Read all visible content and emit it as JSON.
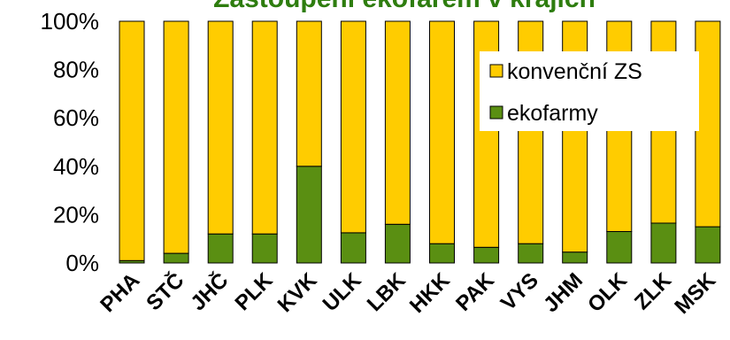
{
  "chart_data": {
    "type": "bar",
    "stacked": true,
    "title": "Zastoupení ekofarem v krajích",
    "categories": [
      "PHA",
      "STČ",
      "JHČ",
      "PLK",
      "KVK",
      "ULK",
      "LBK",
      "HKK",
      "PAK",
      "VYS",
      "JHM",
      "OLK",
      "ZLK",
      "MSK"
    ],
    "series": [
      {
        "name": "ekofarmy",
        "color": "#5a8f12",
        "values": [
          1,
          4,
          12,
          12,
          40,
          12.5,
          16,
          8,
          6.5,
          8,
          4.5,
          13,
          16.5,
          15
        ]
      },
      {
        "name": "konvenční ZS",
        "color": "#ffcc00",
        "values": [
          99,
          96,
          88,
          88,
          60,
          87.5,
          84,
          92,
          93.5,
          92,
          95.5,
          87,
          83.5,
          85
        ]
      }
    ],
    "yticks": [
      "0%",
      "20%",
      "40%",
      "60%",
      "80%",
      "100%"
    ],
    "ylim": [
      0,
      100
    ],
    "grid": false,
    "legend_position": "top-right"
  }
}
